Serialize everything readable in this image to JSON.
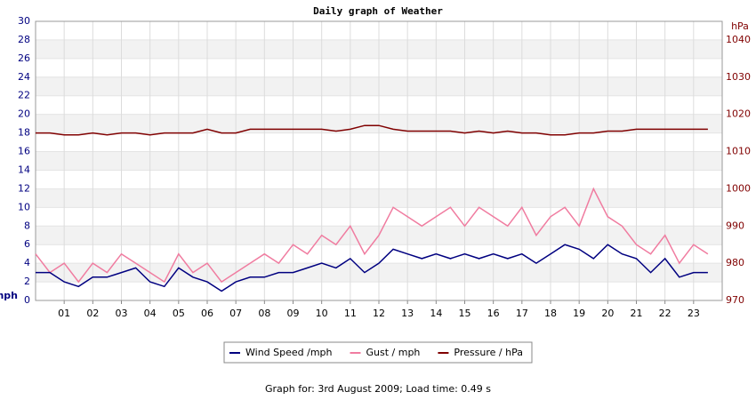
{
  "chart_data": {
    "type": "line",
    "title": "Daily graph of Weather",
    "y_label": "mph",
    "y2_label": "hPa",
    "footer": "Graph for: 3rd August 2009; Load time: 0.49 s",
    "x": [
      0,
      0.5,
      1,
      1.5,
      2,
      2.5,
      3,
      3.5,
      4,
      4.5,
      5,
      5.5,
      6,
      6.5,
      7,
      7.5,
      8,
      8.5,
      9,
      9.5,
      10,
      10.5,
      11,
      11.5,
      12,
      12.5,
      13,
      13.5,
      14,
      14.5,
      15,
      15.5,
      16,
      16.5,
      17,
      17.5,
      18,
      18.5,
      19,
      19.5,
      20,
      20.5,
      21,
      21.5,
      22,
      22.5,
      23,
      23.5
    ],
    "xlim": [
      0,
      24
    ],
    "xticks": [
      {
        "value": 1,
        "label": "01"
      },
      {
        "value": 2,
        "label": "02"
      },
      {
        "value": 3,
        "label": "03"
      },
      {
        "value": 4,
        "label": "04"
      },
      {
        "value": 5,
        "label": "05"
      },
      {
        "value": 6,
        "label": "06"
      },
      {
        "value": 7,
        "label": "07"
      },
      {
        "value": 8,
        "label": "08"
      },
      {
        "value": 9,
        "label": "09"
      },
      10,
      11,
      12,
      13,
      14,
      15,
      16,
      17,
      18,
      19,
      20,
      21,
      22,
      23
    ],
    "ylim": [
      0,
      30
    ],
    "yticks": [
      0,
      2,
      4,
      6,
      8,
      10,
      12,
      14,
      16,
      18,
      20,
      22,
      24,
      26,
      28,
      30
    ],
    "y2lim": [
      970,
      1045
    ],
    "y2ticks": [
      970,
      980,
      990,
      1000,
      1010,
      1020,
      1030,
      1040
    ],
    "grid": true,
    "series": [
      {
        "name": "Gust / mph",
        "color": "#f07ca0",
        "values": [
          5,
          3,
          4,
          2,
          4,
          3,
          5,
          4,
          3,
          2,
          5,
          3,
          4,
          2,
          3,
          4,
          5,
          4,
          6,
          5,
          7,
          6,
          8,
          5,
          7,
          10,
          9,
          8,
          9,
          10,
          8,
          10,
          9,
          8,
          10,
          7,
          9,
          10,
          8,
          12,
          9,
          8,
          6,
          5,
          7,
          4,
          6,
          5
        ]
      },
      {
        "name": "Wind Speed /mph",
        "color": "#000080",
        "values": [
          3,
          3,
          2,
          1.5,
          2.5,
          2.5,
          3,
          3.5,
          2,
          1.5,
          3.5,
          2.5,
          2,
          1,
          2,
          2.5,
          2.5,
          3,
          3,
          3.5,
          4,
          3.5,
          4.5,
          3,
          4,
          5.5,
          5,
          4.5,
          5,
          4.5,
          5,
          4.5,
          5,
          4.5,
          5,
          4,
          5,
          6,
          5.5,
          4.5,
          6,
          5,
          4.5,
          3,
          4.5,
          2.5,
          3,
          3
        ]
      },
      {
        "name": "Pressure / hPa",
        "color": "#800000",
        "axis": "y2",
        "values": [
          1015,
          1015,
          1014.5,
          1014.5,
          1015,
          1014.5,
          1015,
          1015,
          1014.5,
          1015,
          1015,
          1015,
          1016,
          1015,
          1015,
          1016,
          1016,
          1016,
          1016,
          1016,
          1016,
          1015.5,
          1016,
          1017,
          1017,
          1016,
          1015.5,
          1015.5,
          1015.5,
          1015.5,
          1015,
          1015.5,
          1015,
          1015.5,
          1015,
          1015,
          1014.5,
          1014.5,
          1015,
          1015,
          1015.5,
          1015.5,
          1016,
          1016,
          1016,
          1016,
          1016,
          1016
        ]
      }
    ],
    "legend_order": [
      1,
      0,
      2
    ]
  }
}
